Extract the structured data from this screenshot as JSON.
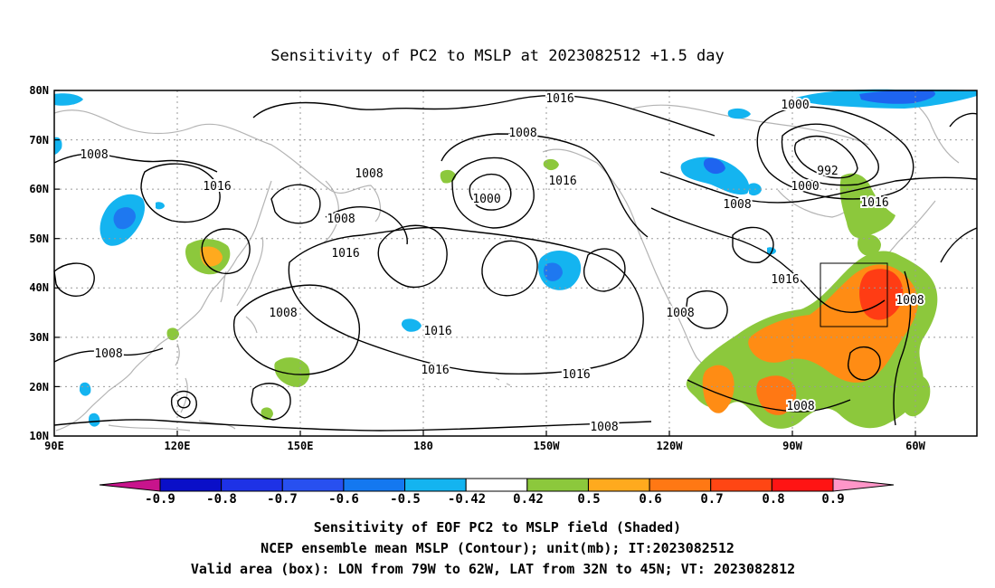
{
  "title": "Sensitivity of PC2 to MSLP at 2023082512 +1.5 day",
  "map": {
    "lat_ticks": [
      "80N",
      "70N",
      "60N",
      "50N",
      "40N",
      "30N",
      "20N",
      "10N"
    ],
    "lon_ticks": [
      "90E",
      "120E",
      "150E",
      "180",
      "150W",
      "120W",
      "90W",
      "60W"
    ],
    "contour_labels": [
      "1016",
      "1008",
      "1000",
      "992",
      "1000",
      "1000",
      "1016",
      "1008",
      "1016",
      "1008",
      "1008",
      "1016",
      "1016",
      "1016",
      "1016",
      "1016",
      "1008",
      "1008",
      "1008",
      "1008",
      "1008"
    ],
    "box": {
      "lon_from": "79W",
      "lon_to": "62W",
      "lat_from": "32N",
      "lat_to": "45N"
    },
    "colors": {
      "land_outline": "#b4b4b4",
      "contour": "#000000",
      "grid": "#9a9a9a"
    }
  },
  "colorbar": {
    "labels": [
      "-0.9",
      "-0.8",
      "-0.7",
      "-0.6",
      "-0.5",
      "-0.42",
      "0.42",
      "0.5",
      "0.6",
      "0.7",
      "0.8",
      "0.9"
    ],
    "colors": [
      "#0a0fc8",
      "#1e32e6",
      "#2850f0",
      "#1478f0",
      "#14b4f0",
      "#ffffff",
      "#8cc83c",
      "#ffaa1e",
      "#ff7814",
      "#ff4614",
      "#ff1414"
    ],
    "low_end_color": "#c8148c",
    "high_end_color": "#ff96c8"
  },
  "caption": {
    "line1": "Sensitivity of EOF PC2 to MSLP field (Shaded)",
    "line2": "NCEP ensemble mean MSLP (Contour); unit(mb); IT:2023082512",
    "line3": "Valid area (box): LON from 79W to 62W, LAT from 32N to 45N; VT: 2023082812"
  }
}
